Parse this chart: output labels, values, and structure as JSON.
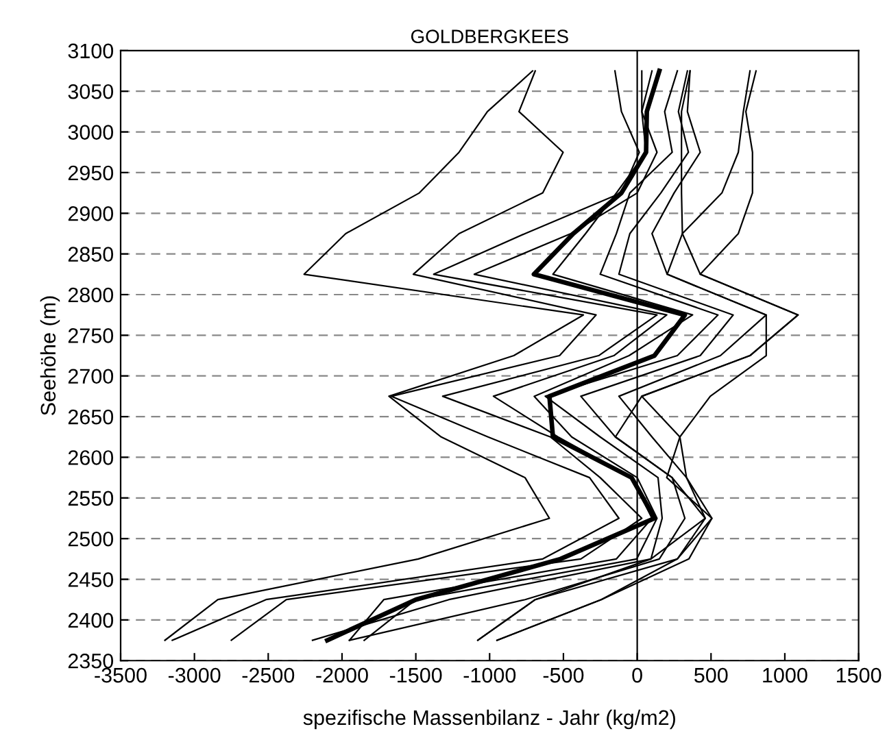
{
  "chart_data": {
    "type": "line",
    "title": "GOLDBERGKEES",
    "xlabel": "spezifische Massenbilanz - Jahr (kg/m2)",
    "ylabel": "Seehöhe (m)",
    "xlim": [
      -3500,
      1500
    ],
    "xticks": [
      -3500,
      -3000,
      -2500,
      -2000,
      -1500,
      -1000,
      -500,
      0,
      500,
      1000,
      1500
    ],
    "ylim": [
      2350,
      3100
    ],
    "yticks": [
      2350,
      2400,
      2450,
      2500,
      2550,
      2600,
      2650,
      2700,
      2750,
      2800,
      2850,
      2900,
      2950,
      3000,
      3050,
      3100
    ],
    "grid": "y",
    "line_style": "solid",
    "marker": "none",
    "ref_lines": [
      {
        "axis": "x",
        "value": 0,
        "color": "#000000",
        "line_style": "solid"
      }
    ],
    "series": [
      {
        "color": "#000000",
        "x": [
          -709,
          -1015,
          -1207,
          -1476,
          -1975,
          -2257,
          -365,
          -836,
          -1682,
          -1328,
          -760,
          -595,
          -1483,
          -2841,
          -3200
        ],
        "values": [
          3075,
          3025,
          2975,
          2925,
          2875,
          2825,
          2775,
          2725,
          2675,
          2625,
          2575,
          2525,
          2475,
          2425,
          2375
        ]
      },
      {
        "color": "#000000",
        "x": [
          -691,
          -801,
          -502,
          -640,
          -1207,
          -1517,
          -279,
          -526,
          -1665,
          -1011,
          -323,
          -124,
          -640,
          -2515,
          -3150
        ],
        "values": [
          3075,
          3025,
          2975,
          2925,
          2875,
          2825,
          2775,
          2725,
          2675,
          2625,
          2575,
          2525,
          2475,
          2425,
          2375
        ]
      },
      {
        "color": "#000000",
        "x": [
          -151,
          -107,
          14,
          -107,
          -760,
          -1379,
          134,
          -261,
          -1318,
          -588,
          -251,
          31,
          -382,
          -2377,
          -2750
        ],
        "values": [
          3075,
          3025,
          2975,
          2925,
          2875,
          2825,
          2775,
          2725,
          2675,
          2625,
          2575,
          2525,
          2475,
          2425,
          2375
        ]
      },
      {
        "color": "#000000",
        "x": [
          31,
          31,
          134,
          0,
          -450,
          -1104,
          200,
          -158,
          -974,
          -537,
          -38,
          100,
          -141,
          -1717,
          -1950
        ],
        "values": [
          3075,
          3025,
          2975,
          2925,
          2875,
          2825,
          2775,
          2725,
          2675,
          2625,
          2575,
          2525,
          2475,
          2425,
          2375
        ]
      },
      {
        "color": "#000000",
        "x": [
          100,
          31,
          60,
          -141,
          -350,
          -571,
          375,
          -55,
          -698,
          -444,
          0,
          134,
          -3,
          -1500,
          -1850
        ],
        "values": [
          3075,
          3025,
          2975,
          2925,
          2875,
          2825,
          2775,
          2725,
          2675,
          2625,
          2575,
          2525,
          2475,
          2425,
          2375
        ]
      },
      {
        "color": "#000000",
        "x": [
          272,
          186,
          237,
          -50,
          -141,
          -251,
          547,
          272,
          -623,
          -251,
          141,
          169,
          93,
          -1276,
          -2200
        ],
        "values": [
          3075,
          3025,
          2975,
          2925,
          2875,
          2825,
          2775,
          2725,
          2675,
          2625,
          2575,
          2525,
          2475,
          2425,
          2375
        ]
      },
      {
        "color": "#000000",
        "x": [
          340,
          279,
          347,
          160,
          -50,
          -124,
          650,
          427,
          -382,
          -148,
          237,
          323,
          150,
          -760,
          -1950
        ],
        "values": [
          3075,
          3025,
          2975,
          2925,
          2875,
          2825,
          2775,
          2725,
          2675,
          2625,
          2575,
          2525,
          2475,
          2425,
          2375
        ]
      },
      {
        "color": "#000000",
        "x": [
          358,
          340,
          427,
          250,
          100,
          203,
          874,
          564,
          -124,
          100,
          334,
          461,
          272,
          -691,
          -1080
        ],
        "values": [
          3075,
          3025,
          2975,
          2925,
          2875,
          2825,
          2775,
          2725,
          2675,
          2625,
          2575,
          2525,
          2475,
          2425,
          2375
        ]
      },
      {
        "color": "#000000",
        "x": [
          358,
          300,
          300,
          300,
          306,
          427,
          1090,
          764,
          31,
          289,
          200,
          506,
          350,
          -244,
          -950
        ],
        "values": [
          3075,
          3025,
          2975,
          2925,
          2875,
          2825,
          2775,
          2725,
          2675,
          2625,
          2575,
          2525,
          2475,
          2425,
          2375
        ]
      },
      {
        "color": "#000000",
        "x": [
          764,
          719,
          685,
          574,
          306,
          203,
          874,
          874,
          495,
          289,
          334,
          506,
          272,
          -244,
          -950
        ],
        "values": [
          3075,
          3025,
          2975,
          2925,
          2875,
          2825,
          2775,
          2725,
          2675,
          2625,
          2575,
          2525,
          2475,
          2425,
          2375
        ]
      },
      {
        "color": "#000000",
        "x": [
          805,
          736,
          781,
          781,
          685,
          427,
          1090,
          764,
          31,
          -148,
          237,
          461,
          93,
          -691,
          -1080
        ],
        "values": [
          3075,
          3025,
          2975,
          2925,
          2875,
          2825,
          2775,
          2725,
          2675,
          2625,
          2575,
          2525,
          2475,
          2425,
          2375
        ]
      },
      {
        "color": "#000000",
        "x": [
          150,
          65,
          60,
          -107,
          -433,
          -700,
          323,
          117,
          -595,
          -571,
          -38,
          117,
          -520,
          -1500,
          -2100
        ],
        "values": [
          3075,
          3025,
          2975,
          2925,
          2875,
          2825,
          2775,
          2725,
          2675,
          2625,
          2575,
          2525,
          2475,
          2425,
          2375
        ]
      }
    ]
  }
}
